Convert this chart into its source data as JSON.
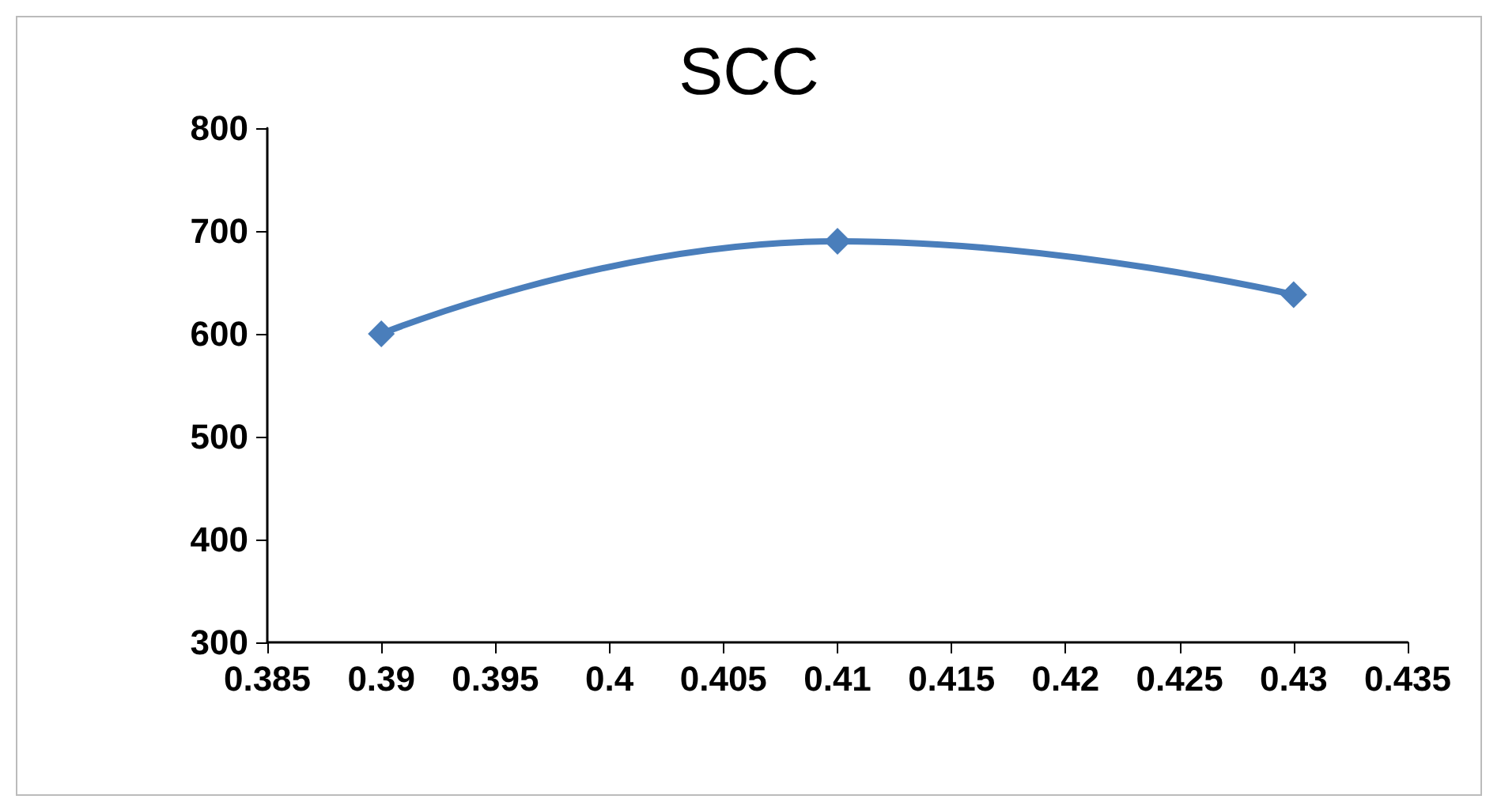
{
  "chart_data": {
    "type": "line",
    "title": "SCC",
    "x": [
      0.39,
      0.41,
      0.43
    ],
    "series": [
      {
        "color": "#4a7ebb",
        "values": [
          600,
          690,
          638
        ]
      }
    ],
    "xlim": [
      0.385,
      0.435
    ],
    "xticks": [
      0.385,
      0.39,
      0.395,
      0.4,
      0.405,
      0.41,
      0.415,
      0.42,
      0.425,
      0.43,
      0.435
    ],
    "ylim": [
      300,
      800
    ],
    "yticks": [
      300,
      400,
      500,
      600,
      700,
      800
    ],
    "marker": "diamond",
    "line_style": "solid",
    "grid": false
  }
}
